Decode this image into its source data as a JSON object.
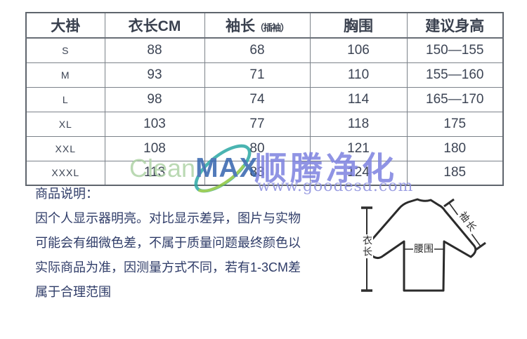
{
  "size_table": {
    "headers": [
      {
        "label": "大褂"
      },
      {
        "label": "衣长CM"
      },
      {
        "label": "袖长",
        "sub": "（插袖）"
      },
      {
        "label": "胸围"
      },
      {
        "label": "建议身高"
      }
    ],
    "rows": [
      [
        "S",
        "88",
        "68",
        "106",
        "150—155"
      ],
      [
        "M",
        "93",
        "71",
        "110",
        "155—160"
      ],
      [
        "L",
        "98",
        "74",
        "114",
        "165—170"
      ],
      [
        "XL",
        "103",
        "77",
        "118",
        "175"
      ],
      [
        "XXL",
        "108",
        "80",
        "121",
        "180"
      ],
      [
        "XXXL",
        "113",
        "83",
        "124",
        "185"
      ]
    ]
  },
  "watermark": {
    "logo_clean": "Clean",
    "logo_max": "MAX",
    "brand_cn": "顺腾净化",
    "website": "www.goodesd.com",
    "colors": {
      "clean_green": "#aed3a6",
      "max_blue": "#3565ae",
      "swoosh_teal": "#2ba7a4",
      "swoosh_green": "#8cc63f",
      "purple": "#7d82e0"
    }
  },
  "description": {
    "title": "商品说明：",
    "lines": [
      "因个人显示器明亮。对比显示差异，图片与实物",
      "可能会有细微色差，不属于质量问题最终颜色以",
      "实际商品为准，因测量方式不同，若有1-3CM差",
      "属于合理范围"
    ]
  },
  "diagram": {
    "labels": {
      "length": "衣长",
      "sleeve": "袖长",
      "waist": "腰围"
    }
  },
  "colors": {
    "table_text": "#3c4454",
    "description_text": "#2f3c68",
    "table_border": "#7c828a"
  }
}
